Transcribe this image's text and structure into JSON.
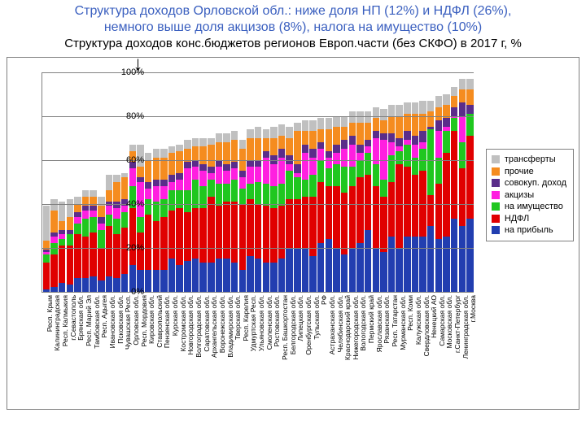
{
  "title": {
    "line1a": "Структура доходов Орловской обл.: ниже доля НП (12%) и НДФЛ (26%),",
    "line1b": "немного выше доля акцизов (8%), налога на имущество (10%)",
    "line2": "Структура доходов конс.бюджетов регионов Европ.части (без СКФО) в 2017 г, %"
  },
  "chart": {
    "type": "bar-stacked",
    "background_color": "#ffffff",
    "border_color": "#7f7f7f",
    "grid_color": "#808080",
    "ylim": [
      0,
      100
    ],
    "ytick_step": 20,
    "yticks_labels": [
      "0%",
      "20%",
      "40%",
      "60%",
      "80%",
      "100%"
    ],
    "label_fontsize": 11,
    "xlabel_fontsize": 8.5,
    "series": [
      {
        "key": "profit",
        "label": "на прибыль",
        "color": "#223eb0"
      },
      {
        "key": "ndfl",
        "label": "НДФЛ",
        "color": "#e00000"
      },
      {
        "key": "property",
        "label": "на имущество",
        "color": "#1fc71f"
      },
      {
        "key": "excise",
        "label": "акцизы",
        "color": "#ff1fe0"
      },
      {
        "key": "sovokup",
        "label": "совокуп. доход",
        "color": "#5a2d8a"
      },
      {
        "key": "other",
        "label": "прочие",
        "color": "#f58c1f"
      },
      {
        "key": "transfers",
        "label": "трансферты",
        "color": "#c0c0c0"
      }
    ],
    "legend": {
      "order": [
        "transfers",
        "other",
        "sovokup",
        "excise",
        "property",
        "ndfl",
        "profit"
      ],
      "border_color": "#7f7f7f",
      "fontsize": 11
    },
    "arrow_region_index": 12,
    "categories": [
      "Респ. Крым",
      "Калининградская",
      "Респ. Калмыкия",
      "г.Севастополь",
      "Брянская обл.",
      "Респ. Марий Эл",
      "Тамбовская обл.",
      "Респ. Адыгея",
      "Ивановская обл.",
      "Псковская обл.",
      "Чувашская Респ.",
      "Орловская обл.",
      "Респ. Мордовия",
      "Кировская обл.",
      "Ставропольский",
      "Пензенская обл.",
      "Курская обл.",
      "Костромская обл.",
      "Новгородская обл.",
      "Волгоградская обл.",
      "Саратовская обл.",
      "Архангельская обл.",
      "Воронежская обл.",
      "Владимирская обл.",
      "Тверская обл.",
      "Респ. Карелия",
      "Удмуртская Респ.",
      "Ульяновская обл.",
      "Смоленская обл.",
      "Ростовская обл.",
      "Респ. Башкортостан",
      "Белгородская обл.",
      "Липецкая обл.",
      "Оренбургская обл.",
      "Тульская обл.",
      "РФ",
      "Астраханская обл.",
      "Челябинская обл.",
      "Краснодарский край",
      "Нижегородская обл.",
      "Вологодская обл.",
      "Пермский край",
      "Ярославская обл.",
      "Рязанская обл.",
      "Респ. Татарстан",
      "Мурманская обл.",
      "Респ. Коми",
      "Калужская обл.",
      "Свердловская обл.",
      "Ненецкий АО",
      "Самарская обл.",
      "Московская обл.",
      "г.Санкт-Петербург",
      "Ленинградская обл.",
      "г.Москва"
    ],
    "values": [
      [
        1,
        12,
        4,
        1,
        1,
        4,
        16
      ],
      [
        2,
        15,
        5,
        3,
        2,
        10,
        5
      ],
      [
        4,
        17,
        3,
        2,
        2,
        4,
        9
      ],
      [
        3,
        18,
        5,
        0,
        2,
        6,
        8
      ],
      [
        6,
        20,
        5,
        3,
        2,
        4,
        3
      ],
      [
        6,
        19,
        8,
        4,
        2,
        4,
        3
      ],
      [
        7,
        20,
        7,
        3,
        2,
        4,
        3
      ],
      [
        5,
        15,
        8,
        3,
        3,
        5,
        4
      ],
      [
        7,
        23,
        5,
        4,
        2,
        5,
        7
      ],
      [
        6,
        20,
        7,
        5,
        3,
        9,
        3
      ],
      [
        8,
        21,
        7,
        3,
        3,
        10,
        2
      ],
      [
        12,
        26,
        10,
        8,
        3,
        5,
        3
      ],
      [
        10,
        17,
        7,
        16,
        2,
        5,
        10
      ],
      [
        10,
        25,
        7,
        5,
        3,
        10,
        3
      ],
      [
        10,
        22,
        9,
        7,
        3,
        10,
        4
      ],
      [
        10,
        24,
        8,
        6,
        3,
        10,
        4
      ],
      [
        15,
        22,
        9,
        4,
        3,
        10,
        3
      ],
      [
        12,
        26,
        8,
        5,
        3,
        10,
        3
      ],
      [
        14,
        22,
        10,
        10,
        3,
        6,
        4
      ],
      [
        15,
        23,
        13,
        6,
        3,
        6,
        4
      ],
      [
        13,
        25,
        10,
        7,
        3,
        8,
        4
      ],
      [
        13,
        30,
        8,
        3,
        3,
        10,
        3
      ],
      [
        15,
        24,
        10,
        8,
        3,
        8,
        4
      ],
      [
        15,
        26,
        8,
        6,
        3,
        10,
        4
      ],
      [
        13,
        28,
        10,
        5,
        3,
        10,
        4
      ],
      [
        10,
        30,
        7,
        5,
        3,
        10,
        4
      ],
      [
        16,
        26,
        7,
        8,
        3,
        10,
        4
      ],
      [
        15,
        25,
        10,
        7,
        3,
        10,
        5
      ],
      [
        13,
        26,
        10,
        12,
        3,
        6,
        4
      ],
      [
        13,
        25,
        10,
        10,
        4,
        8,
        5
      ],
      [
        15,
        24,
        10,
        12,
        4,
        6,
        5
      ],
      [
        20,
        22,
        13,
        3,
        4,
        8,
        5
      ],
      [
        20,
        22,
        10,
        2,
        4,
        15,
        4
      ],
      [
        20,
        23,
        8,
        12,
        4,
        6,
        5
      ],
      [
        16,
        27,
        10,
        8,
        4,
        8,
        5
      ],
      [
        22,
        28,
        10,
        5,
        3,
        6,
        5
      ],
      [
        24,
        24,
        8,
        5,
        3,
        10,
        5
      ],
      [
        20,
        28,
        10,
        5,
        4,
        8,
        5
      ],
      [
        17,
        28,
        12,
        8,
        4,
        6,
        5
      ],
      [
        20,
        28,
        9,
        10,
        4,
        6,
        5
      ],
      [
        22,
        30,
        8,
        3,
        4,
        10,
        5
      ],
      [
        28,
        25,
        10,
        3,
        3,
        8,
        5
      ],
      [
        20,
        28,
        10,
        12,
        3,
        6,
        5
      ],
      [
        18,
        25,
        8,
        18,
        3,
        6,
        5
      ],
      [
        25,
        25,
        12,
        6,
        4,
        8,
        5
      ],
      [
        20,
        38,
        6,
        2,
        4,
        10,
        5
      ],
      [
        25,
        32,
        10,
        2,
        4,
        8,
        5
      ],
      [
        25,
        28,
        8,
        6,
        4,
        10,
        5
      ],
      [
        25,
        30,
        10,
        3,
        5,
        8,
        6
      ],
      [
        30,
        14,
        30,
        0,
        1,
        7,
        5
      ],
      [
        24,
        25,
        12,
        12,
        5,
        6,
        5
      ],
      [
        25,
        38,
        10,
        2,
        4,
        6,
        5
      ],
      [
        33,
        40,
        6,
        1,
        4,
        5,
        4
      ],
      [
        30,
        26,
        12,
        12,
        6,
        6,
        5
      ],
      [
        33,
        38,
        10,
        0,
        4,
        7,
        5
      ]
    ]
  }
}
